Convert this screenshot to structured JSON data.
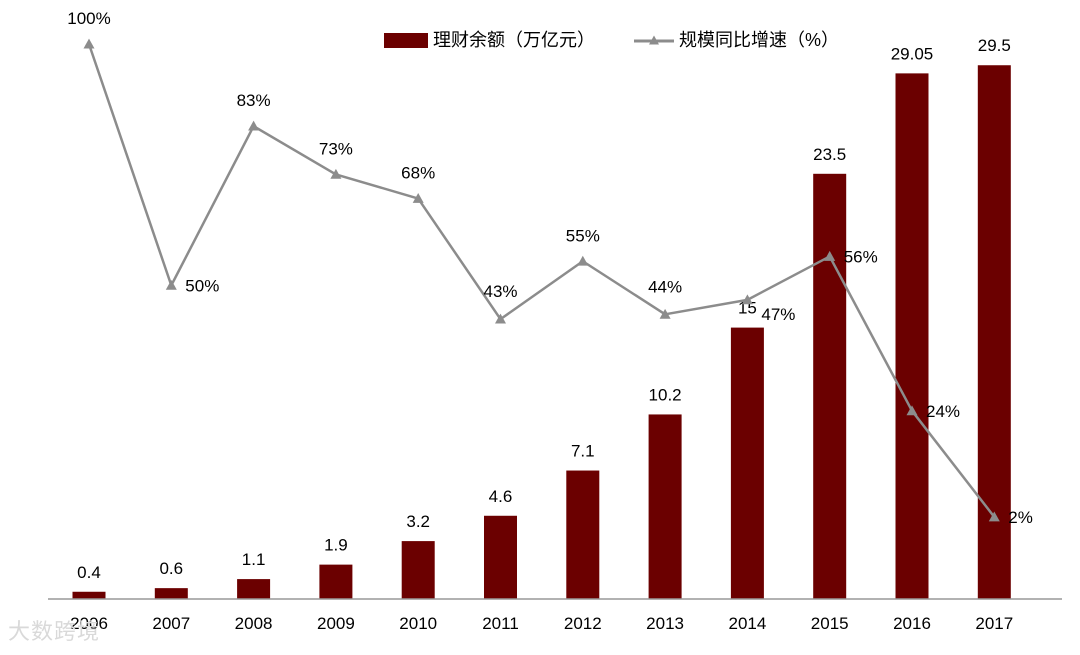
{
  "chart_data": {
    "type": "bar+line",
    "categories": [
      "2006",
      "2007",
      "2008",
      "2009",
      "2010",
      "2011",
      "2012",
      "2013",
      "2014",
      "2015",
      "2016",
      "2017"
    ],
    "bars": {
      "name": "理财余额（万亿元）",
      "values": [
        0.4,
        0.6,
        1.1,
        1.9,
        3.2,
        4.6,
        7.1,
        10.2,
        15,
        23.5,
        29.05,
        29.5
      ],
      "labels": [
        "0.4",
        "0.6",
        "1.1",
        "1.9",
        "3.2",
        "4.6",
        "7.1",
        "10.2",
        "15",
        "23.5",
        "29.05",
        "29.5"
      ],
      "color": "#6b0000",
      "ylim": [
        0,
        32
      ]
    },
    "line": {
      "name": "规模同比增速（%）",
      "values": [
        100,
        50,
        83,
        73,
        68,
        43,
        55,
        44,
        47,
        56,
        24,
        2
      ],
      "labels": [
        "100%",
        "50%",
        "83%",
        "73%",
        "68%",
        "43%",
        "55%",
        "44%",
        "47%",
        "56%",
        "24%",
        "2%"
      ],
      "color": "#8c8c8c",
      "ylim": [
        -15,
        105
      ]
    },
    "legend": "top-center",
    "grid": false
  },
  "watermark": {
    "text": "大数跨境"
  }
}
